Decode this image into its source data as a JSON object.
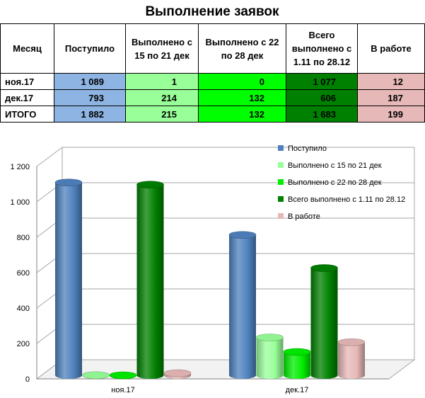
{
  "title": "Выполнение заявок",
  "table": {
    "headers": [
      "Месяц",
      "Поступило",
      "Выполнено с 15 по 21 дек",
      "Выполнено с 22 по 28 дек",
      "Всего выполнено с 1.11 по 28.12",
      "В работе"
    ],
    "rows": [
      {
        "month": "ноя.17",
        "received": "1 089",
        "done_15_21": "1",
        "done_22_28": "0",
        "done_total": "1 077",
        "in_work": "12"
      },
      {
        "month": "дек.17",
        "received": "793",
        "done_15_21": "214",
        "done_22_28": "132",
        "done_total": "606",
        "in_work": "187"
      },
      {
        "month": "ИТОГО",
        "received": "1 882",
        "done_15_21": "215",
        "done_22_28": "132",
        "done_total": "1 683",
        "in_work": "199"
      }
    ]
  },
  "colors": {
    "received": "#4f81bd",
    "done_15_21": "#99ff99",
    "done_22_28": "#00ee00",
    "done_total": "#008000",
    "in_work": "#e6b8b7"
  },
  "chart_data": {
    "type": "bar",
    "categories": [
      "ноя.17",
      "дек.17"
    ],
    "series": [
      {
        "name": "Поступило",
        "values": [
          1089,
          793
        ]
      },
      {
        "name": "Выполнено с 15 по 21 дек",
        "values": [
          1,
          214
        ]
      },
      {
        "name": "Выполнено с 22 по 28 дек",
        "values": [
          0,
          132
        ]
      },
      {
        "name": "Всего выполнено  с 1.11 по 28.12",
        "values": [
          1077,
          606
        ]
      },
      {
        "name": "В работе",
        "values": [
          12,
          187
        ]
      }
    ],
    "yticks": [
      "0",
      "200",
      "400",
      "600",
      "800",
      "1 000",
      "1 200"
    ],
    "ylim": [
      0,
      1200
    ],
    "grid": true,
    "legend_position": "right",
    "style": "3d-cylinder"
  }
}
